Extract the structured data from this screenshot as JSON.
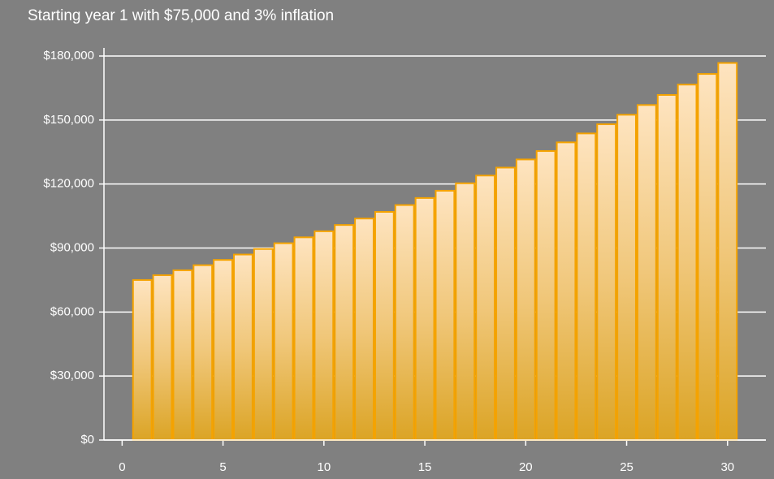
{
  "chart_data": {
    "type": "bar",
    "title": "Starting year 1 with $75,000 and 3% inflation",
    "x": [
      1,
      2,
      3,
      4,
      5,
      6,
      7,
      8,
      9,
      10,
      11,
      12,
      13,
      14,
      15,
      16,
      17,
      18,
      19,
      20,
      21,
      22,
      23,
      24,
      25,
      26,
      27,
      28,
      29,
      30
    ],
    "values": [
      75000,
      77250,
      79568,
      81955,
      84413,
      86946,
      89554,
      92241,
      95008,
      97858,
      100794,
      103818,
      106932,
      110140,
      113444,
      116848,
      120353,
      123964,
      127682,
      131513,
      135458,
      139522,
      143708,
      148019,
      152460,
      157033,
      161744,
      166597,
      171595,
      176742
    ],
    "color": "#f5a300",
    "xlim": [
      -0.9,
      31.9
    ],
    "xticks": [
      0,
      5,
      10,
      15,
      20,
      25,
      30
    ],
    "ylim": [
      0,
      180000
    ],
    "yticks": [
      {
        "value": 0,
        "label": "$0"
      },
      {
        "value": 30000,
        "label": "$30,000"
      },
      {
        "value": 60000,
        "label": "$60,000"
      },
      {
        "value": 90000,
        "label": "$90,000"
      },
      {
        "value": 120000,
        "label": "$120,000"
      },
      {
        "value": 150000,
        "label": "$150,000"
      },
      {
        "value": 180000,
        "label": "$180,000"
      }
    ],
    "grid": true
  }
}
